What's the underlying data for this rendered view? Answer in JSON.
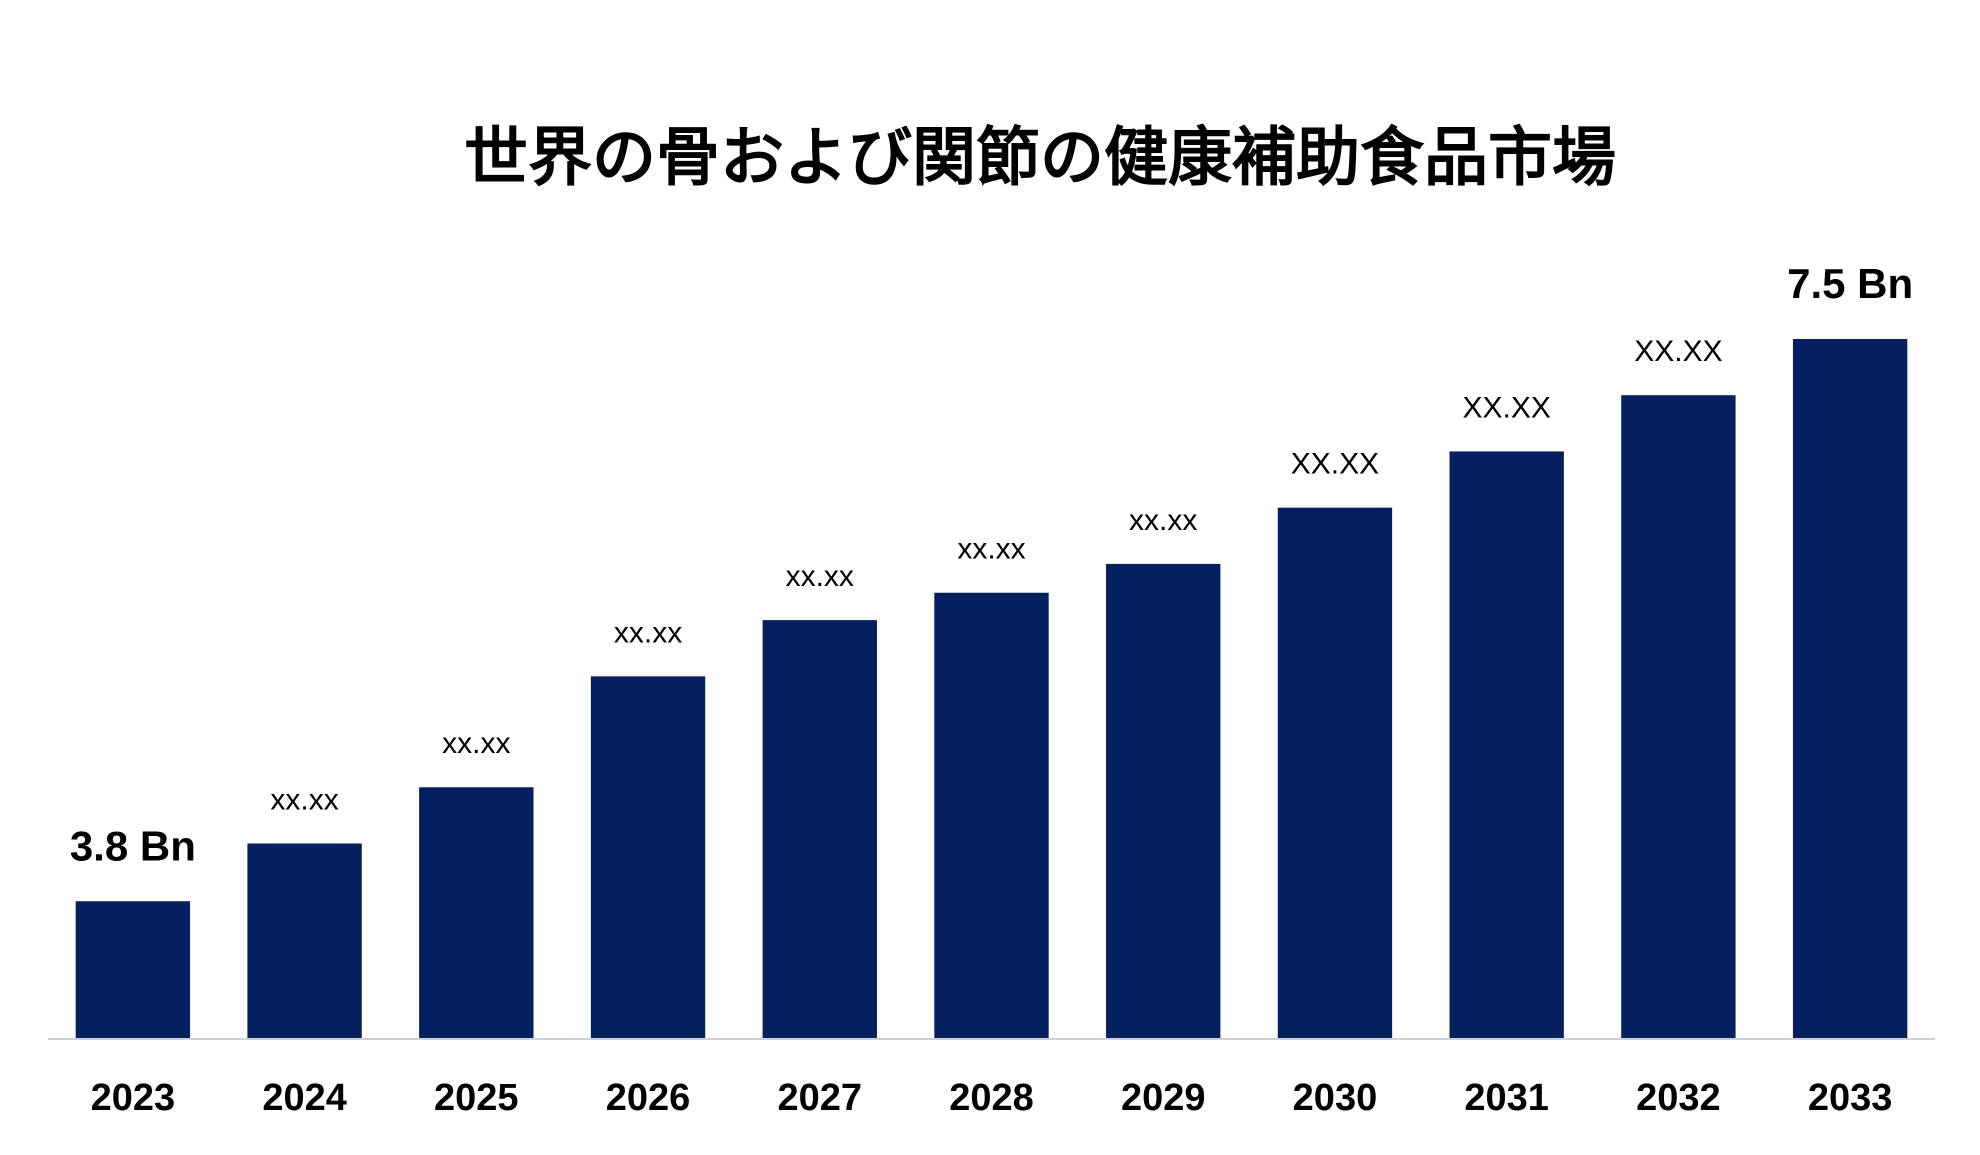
{
  "chart_data": {
    "type": "bar",
    "title": "世界の骨および関節の健康補助食品市場",
    "categories": [
      "2023",
      "2024",
      "2025",
      "2026",
      "2027",
      "2028",
      "2029",
      "2030",
      "2031",
      "2032",
      "2033"
    ],
    "values": [
      3.8,
      4.18,
      4.55,
      5.28,
      5.65,
      5.83,
      6.02,
      6.39,
      6.76,
      7.13,
      7.5
    ],
    "value_labels": [
      "3.8 Bn",
      "xx.xx",
      "xx.xx",
      "xx.xx",
      "xx.xx",
      "xx.xx",
      "xx.xx",
      "XX.XX",
      "XX.XX",
      "XX.XX",
      "7.5 Bn"
    ],
    "color": "#04205f",
    "ylim": [
      2.9,
      8.0
    ],
    "grid": false
  }
}
